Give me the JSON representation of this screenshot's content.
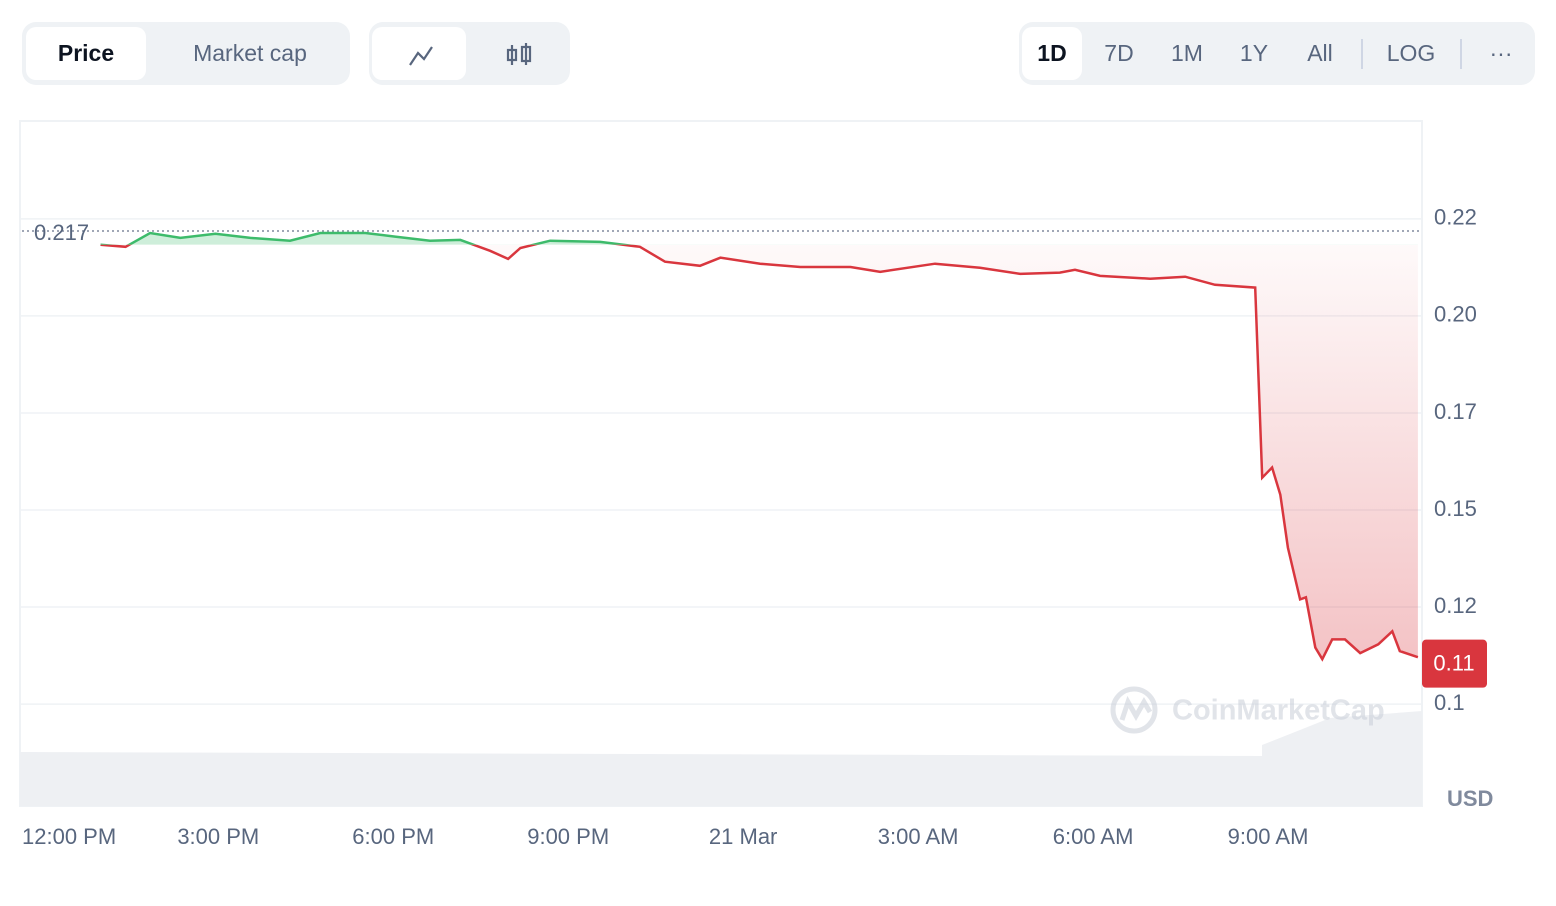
{
  "controls": {
    "tabs": [
      "Price",
      "Market cap"
    ],
    "ranges": [
      "1D",
      "7D",
      "1M",
      "1Y",
      "All"
    ],
    "log": "LOG",
    "more": "···"
  },
  "chart_data": {
    "type": "line",
    "x": [
      12.98,
      13.41,
      13.83,
      14.35,
      14.95,
      15.55,
      16.23,
      16.75,
      17.52,
      18.03,
      18.63,
      19.15,
      19.66,
      19.97,
      20.18,
      20.69,
      21.55,
      22.23,
      22.66,
      23.26,
      23.61,
      24.29,
      24.98,
      25.84,
      26.35,
      27.29,
      28.06,
      28.75,
      29.43,
      29.69,
      30.12,
      30.98,
      31.58,
      32.09,
      32.78,
      32.9,
      33.07,
      33.21,
      33.34,
      33.55,
      33.65,
      33.81,
      33.93,
      34.1,
      34.32,
      34.58,
      34.89,
      35.13,
      35.26,
      35.57
    ],
    "values": [
      0.2136,
      0.2131,
      0.2165,
      0.2153,
      0.2163,
      0.2153,
      0.2146,
      0.2165,
      0.2165,
      0.2156,
      0.2146,
      0.2148,
      0.2121,
      0.2101,
      0.2128,
      0.2146,
      0.2143,
      0.2131,
      0.2094,
      0.2084,
      0.2104,
      0.2089,
      0.2081,
      0.2081,
      0.2069,
      0.2089,
      0.2079,
      0.2064,
      0.2067,
      0.2074,
      0.2059,
      0.2052,
      0.2057,
      0.2037,
      0.203,
      0.156,
      0.1585,
      0.1518,
      0.1387,
      0.1259,
      0.1264,
      0.114,
      0.1111,
      0.116,
      0.116,
      0.1126,
      0.1148,
      0.118,
      0.1131,
      0.1116
    ],
    "color_up": "#3dbb6b",
    "color_down": "#d9363e",
    "reference": 0.217,
    "current_price": 0.11,
    "xlim": [
      11.6,
      35.64
    ],
    "xticks": [
      {
        "value": 12,
        "label": "12:00 PM"
      },
      {
        "value": 15,
        "label": "3:00 PM"
      },
      {
        "value": 18,
        "label": "6:00 PM"
      },
      {
        "value": 21,
        "label": "9:00 PM"
      },
      {
        "value": 24,
        "label": "21 Mar"
      },
      {
        "value": 27,
        "label": "3:00 AM"
      },
      {
        "value": 30,
        "label": "6:00 AM"
      },
      {
        "value": 33,
        "label": "9:00 AM"
      }
    ],
    "ylim": [
      0.0748,
      0.2442
    ],
    "yticks": [
      0.22,
      {
        "value": 0.196,
        "label": "0.20"
      },
      {
        "value": 0.172,
        "label": "0.17"
      },
      {
        "value": 0.148,
        "label": "0.15"
      },
      {
        "value": 0.124,
        "label": "0.12"
      },
      0.1
    ],
    "y_unit": "USD",
    "watermark": "CoinMarketCap",
    "grid": true
  }
}
